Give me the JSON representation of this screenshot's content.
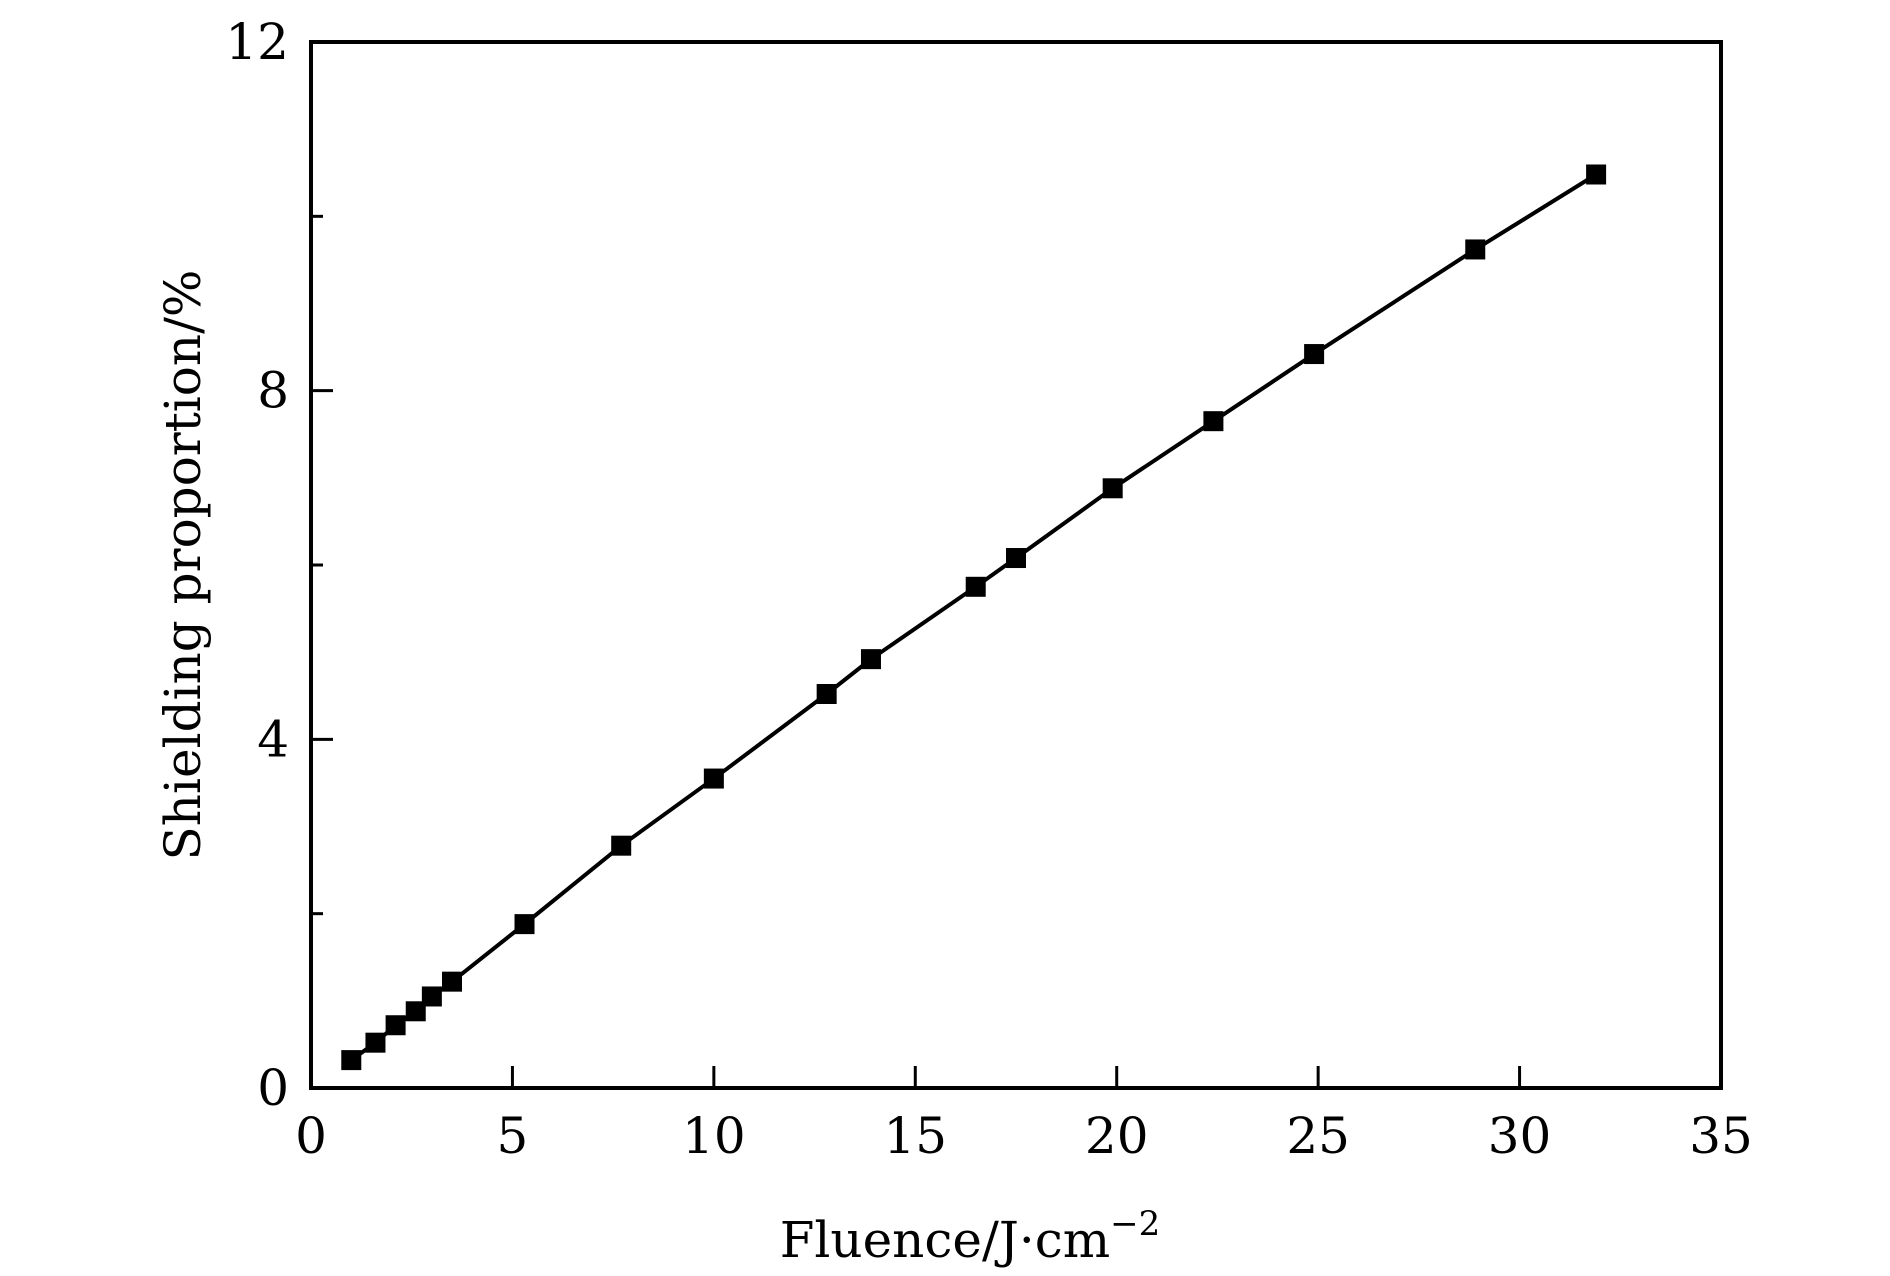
{
  "chart_data": {
    "type": "line",
    "title": "",
    "xlabel": "Fluence/J·cm",
    "xlabel_superscript": "−2",
    "ylabel": "Shielding proportion/%",
    "xlim": [
      0,
      35
    ],
    "ylim": [
      0,
      12
    ],
    "x_ticks": [
      0,
      5,
      10,
      15,
      20,
      25,
      30,
      35
    ],
    "x_tick_labels": [
      "0",
      "5",
      "10",
      "15",
      "20",
      "25",
      "30",
      "35"
    ],
    "y_ticks": [
      0,
      4,
      8,
      12
    ],
    "y_tick_labels": [
      "0",
      "4",
      "8",
      "12"
    ],
    "y_minor_ticks": [
      2,
      6,
      10
    ],
    "grid": false,
    "marker": "square",
    "line_color": "#000000",
    "series": [
      {
        "x": [
          1.0,
          1.6,
          2.1,
          2.6,
          3.0,
          3.5,
          5.3,
          7.7,
          10.0,
          12.8,
          13.9,
          16.5,
          17.5,
          19.9,
          22.4,
          24.9,
          28.9,
          31.9
        ],
        "y": [
          0.32,
          0.52,
          0.72,
          0.88,
          1.05,
          1.22,
          1.88,
          2.78,
          3.55,
          4.52,
          4.92,
          5.75,
          6.08,
          6.88,
          7.65,
          8.42,
          9.62,
          10.48
        ]
      }
    ]
  }
}
